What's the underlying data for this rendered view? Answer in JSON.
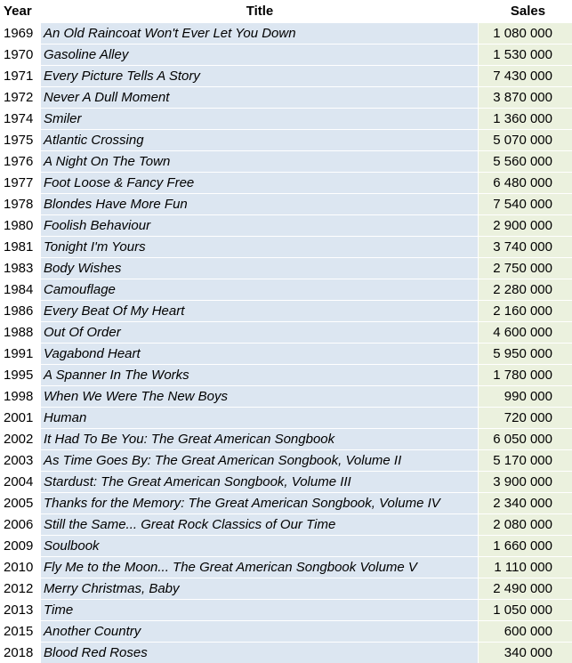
{
  "headers": {
    "year": "Year",
    "title": "Title",
    "sales": "Sales"
  },
  "rows": [
    {
      "year": "1969",
      "title": "An Old Raincoat Won't Ever Let You Down",
      "sales": "1 080 000"
    },
    {
      "year": "1970",
      "title": "Gasoline Alley",
      "sales": "1 530 000"
    },
    {
      "year": "1971",
      "title": "Every Picture Tells A Story",
      "sales": "7 430 000"
    },
    {
      "year": "1972",
      "title": "Never A Dull Moment",
      "sales": "3 870 000"
    },
    {
      "year": "1974",
      "title": "Smiler",
      "sales": "1 360 000"
    },
    {
      "year": "1975",
      "title": "Atlantic Crossing",
      "sales": "5 070 000"
    },
    {
      "year": "1976",
      "title": "A Night On The Town",
      "sales": "5 560 000"
    },
    {
      "year": "1977",
      "title": "Foot Loose & Fancy Free",
      "sales": "6 480 000"
    },
    {
      "year": "1978",
      "title": "Blondes Have More Fun",
      "sales": "7 540 000"
    },
    {
      "year": "1980",
      "title": "Foolish Behaviour",
      "sales": "2 900 000"
    },
    {
      "year": "1981",
      "title": "Tonight I'm Yours",
      "sales": "3 740 000"
    },
    {
      "year": "1983",
      "title": "Body Wishes",
      "sales": "2 750 000"
    },
    {
      "year": "1984",
      "title": "Camouflage",
      "sales": "2 280 000"
    },
    {
      "year": "1986",
      "title": "Every Beat Of My Heart",
      "sales": "2 160 000"
    },
    {
      "year": "1988",
      "title": "Out Of Order",
      "sales": "4 600 000"
    },
    {
      "year": "1991",
      "title": "Vagabond Heart",
      "sales": "5 950 000"
    },
    {
      "year": "1995",
      "title": "A Spanner In The Works",
      "sales": "1 780 000"
    },
    {
      "year": "1998",
      "title": "When We Were The New Boys",
      "sales": "990 000"
    },
    {
      "year": "2001",
      "title": "Human",
      "sales": "720 000"
    },
    {
      "year": "2002",
      "title": "It Had To Be You: The Great American Songbook",
      "sales": "6 050 000"
    },
    {
      "year": "2003",
      "title": "As Time Goes By: The Great American Songbook, Volume II",
      "sales": "5 170 000"
    },
    {
      "year": "2004",
      "title": "Stardust: The Great American Songbook, Volume III",
      "sales": "3 900 000"
    },
    {
      "year": "2005",
      "title": "Thanks for the Memory: The Great American Songbook, Volume IV",
      "sales": "2 340 000"
    },
    {
      "year": "2006",
      "title": "Still the Same... Great Rock Classics of Our Time",
      "sales": "2 080 000"
    },
    {
      "year": "2009",
      "title": "Soulbook",
      "sales": "1 660 000"
    },
    {
      "year": "2010",
      "title": "Fly Me to the Moon... The Great American Songbook Volume V",
      "sales": "1 110 000"
    },
    {
      "year": "2012",
      "title": "Merry Christmas, Baby",
      "sales": "2 490 000"
    },
    {
      "year": "2013",
      "title": "Time",
      "sales": "1 050 000"
    },
    {
      "year": "2015",
      "title": "Another Country",
      "sales": "600 000"
    },
    {
      "year": "2018",
      "title": "Blood Red Roses",
      "sales": "340 000"
    }
  ],
  "colors": {
    "title_fill": "#dce6f1",
    "sales_fill": "#ebf1de"
  }
}
